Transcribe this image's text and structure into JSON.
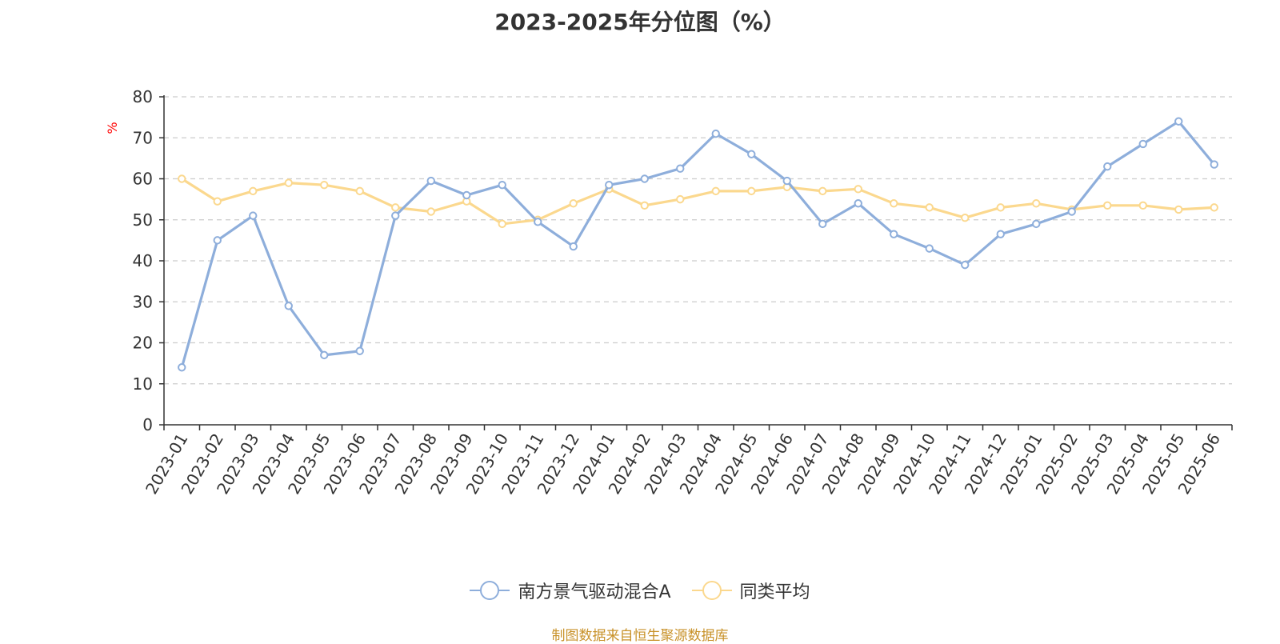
{
  "chart_data": {
    "type": "line",
    "title": "2023-2025年分位图（%）",
    "ylabel": "%",
    "ylim": [
      0,
      80
    ],
    "yticks": [
      0,
      10,
      20,
      30,
      40,
      50,
      60,
      70,
      80
    ],
    "grid": true,
    "legend_position": "bottom",
    "categories": [
      "2023-01",
      "2023-02",
      "2023-03",
      "2023-04",
      "2023-05",
      "2023-06",
      "2023-07",
      "2023-08",
      "2023-09",
      "2023-10",
      "2023-11",
      "2023-12",
      "2024-01",
      "2024-02",
      "2024-03",
      "2024-04",
      "2024-05",
      "2024-06",
      "2024-07",
      "2024-08",
      "2024-09",
      "2024-10",
      "2024-11",
      "2024-12",
      "2025-01",
      "2025-02",
      "2025-03",
      "2025-04",
      "2025-05",
      "2025-06"
    ],
    "series": [
      {
        "name": "南方景气驱动混合A",
        "color": "#8eaedb",
        "values": [
          14,
          45,
          51,
          29,
          17,
          18,
          51,
          59.5,
          56,
          58.5,
          49.5,
          43.5,
          58.5,
          60,
          62.5,
          71,
          66,
          59.5,
          49,
          54,
          46.5,
          43,
          39,
          46.5,
          49,
          52,
          63,
          68.5,
          74,
          63.5
        ]
      },
      {
        "name": "同类平均",
        "color": "#fbd88e",
        "values": [
          60,
          54.5,
          57,
          59,
          58.5,
          57,
          53,
          52,
          54.5,
          49,
          50,
          54,
          57.5,
          53.5,
          55,
          57,
          57,
          58,
          57,
          57.5,
          54,
          53,
          50.5,
          53,
          54,
          52.5,
          53.5,
          53.5,
          52.5,
          53
        ]
      }
    ]
  },
  "source_note": "制图数据来自恒生聚源数据库"
}
